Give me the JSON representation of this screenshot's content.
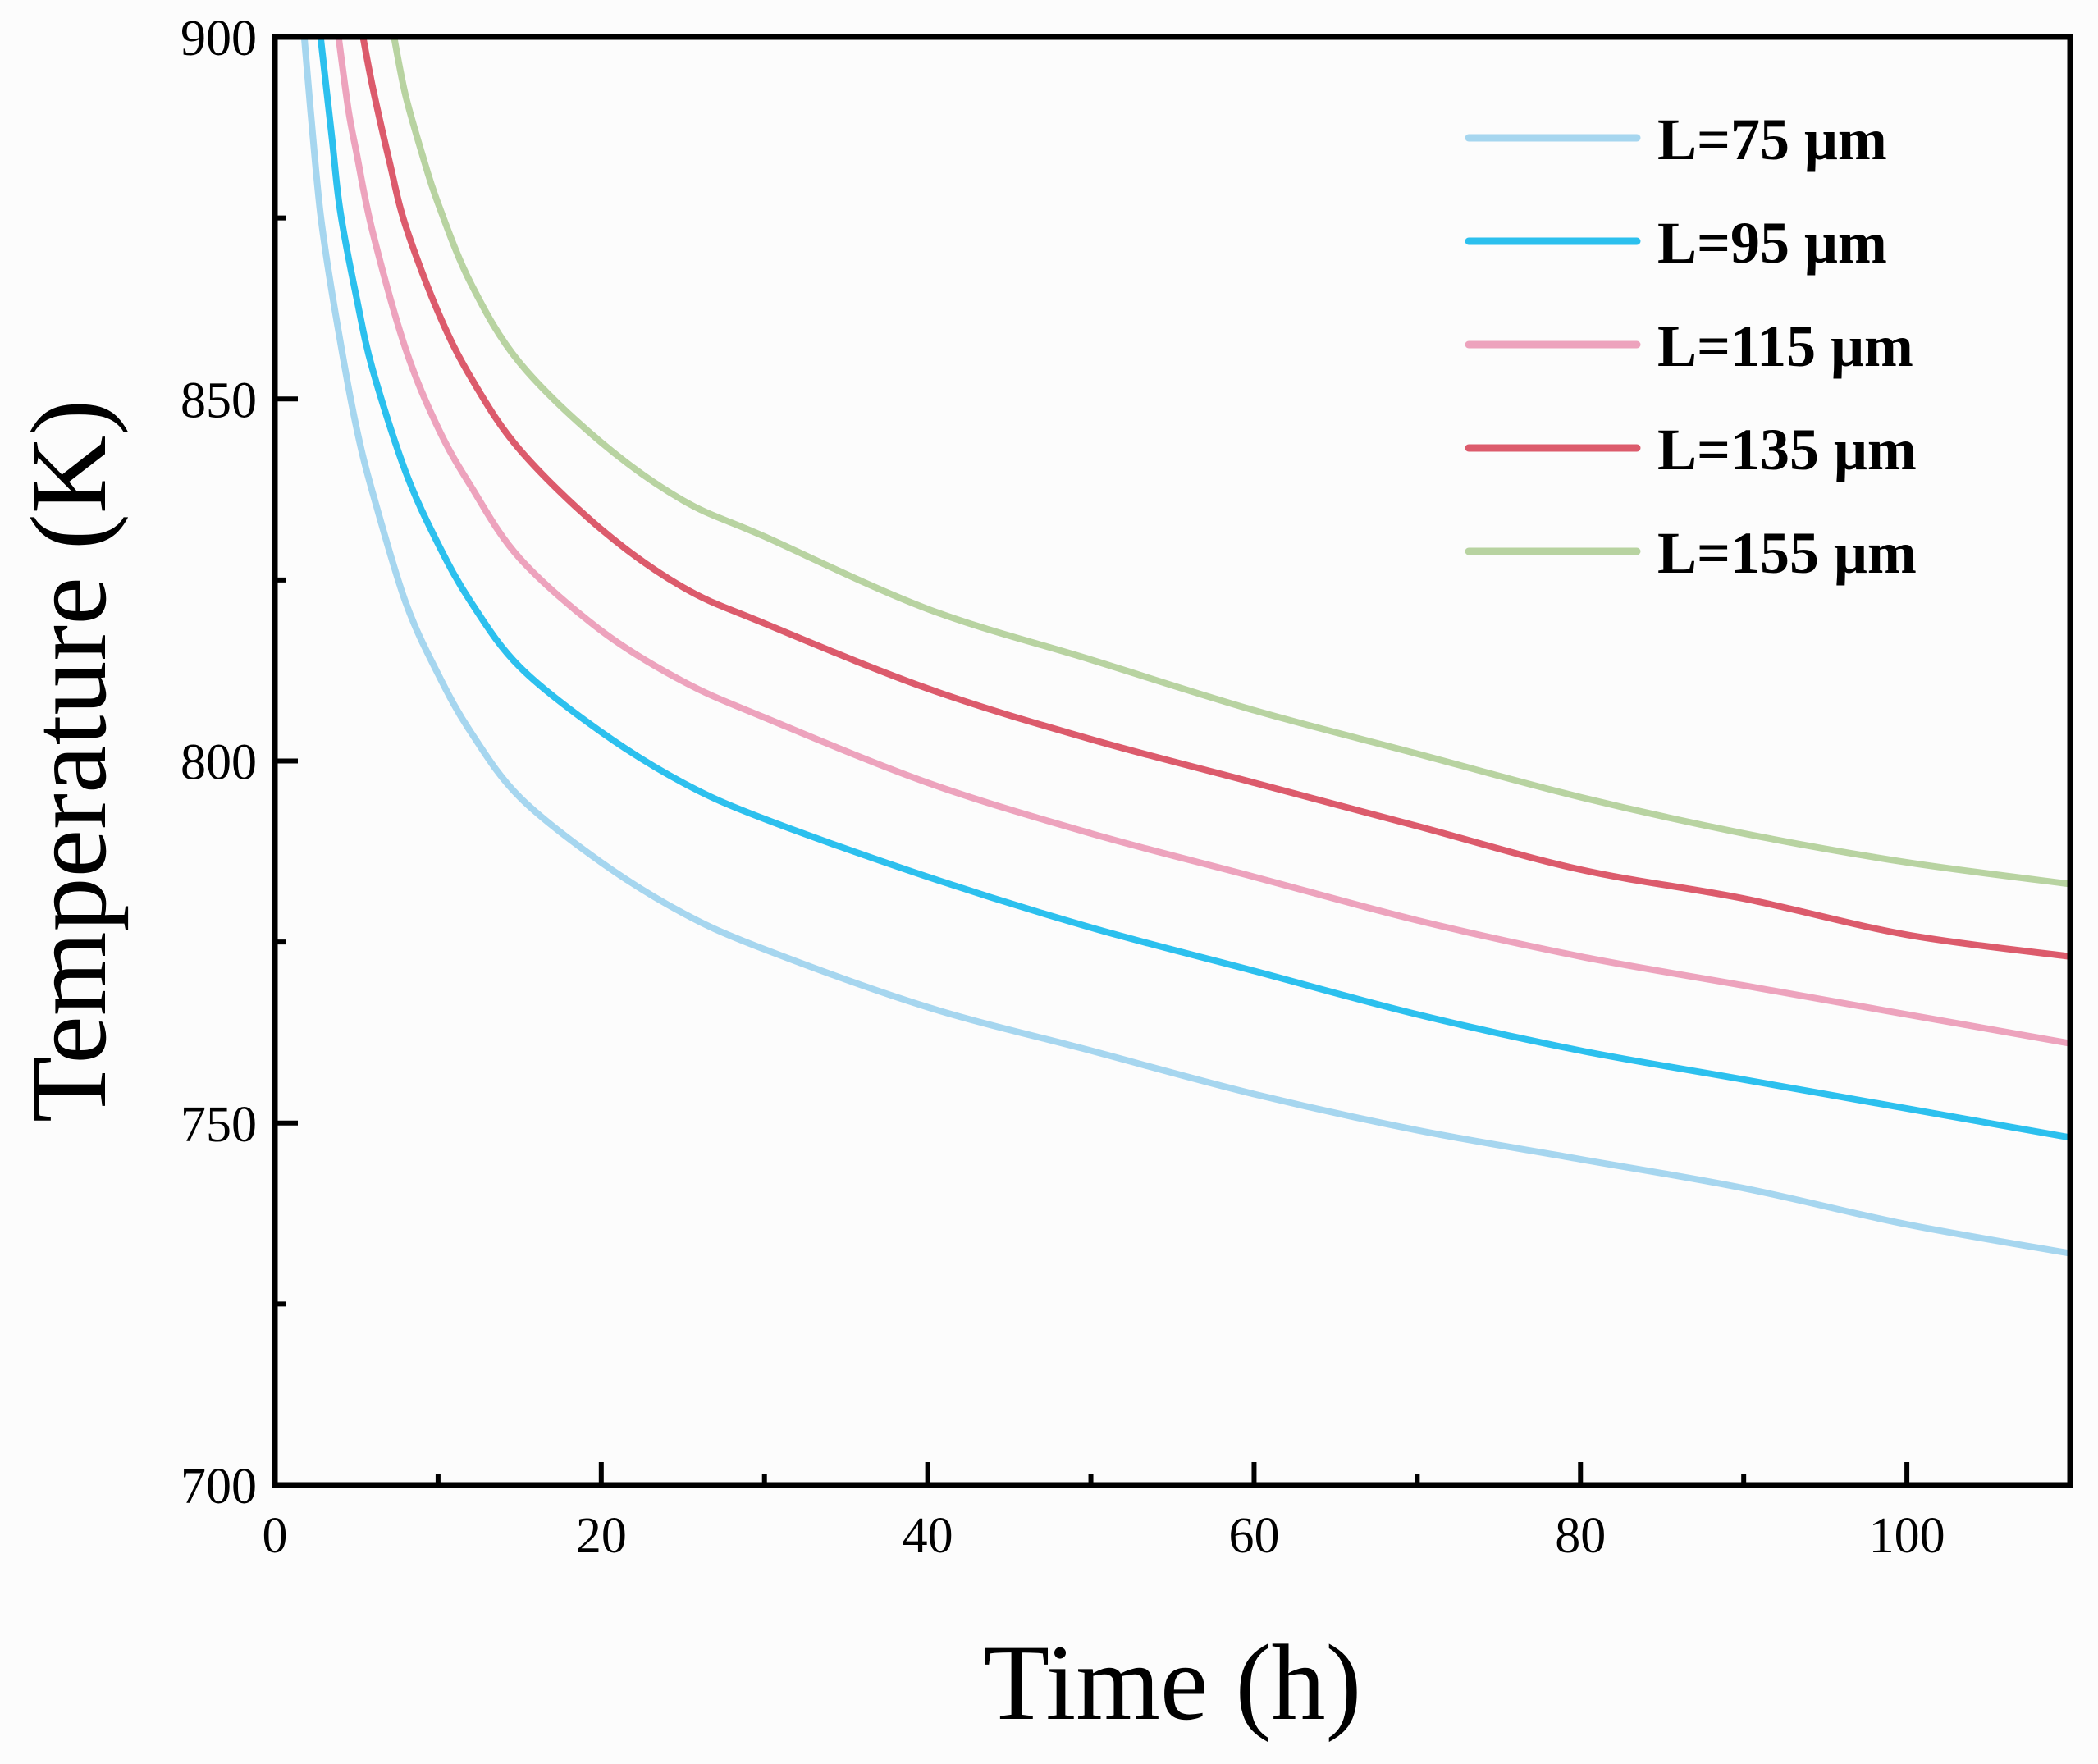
{
  "chart_data": {
    "type": "line",
    "title": "",
    "xlabel": "Time (h)",
    "ylabel": "Temperature (K)",
    "xlim": [
      0,
      110
    ],
    "ylim": [
      700,
      900
    ],
    "grid": false,
    "legend_position": "top-right",
    "x_ticks": [
      0,
      20,
      40,
      60,
      80,
      100
    ],
    "y_ticks": [
      700,
      750,
      800,
      850,
      900
    ],
    "x_tick_labels": [
      "0",
      "20",
      "40",
      "60",
      "80",
      "100"
    ],
    "y_tick_labels": [
      "700",
      "750",
      "800",
      "850",
      "900"
    ],
    "x_minor_ticks": [
      10,
      30,
      50,
      70,
      90
    ],
    "y_minor_ticks": [
      725,
      775,
      825,
      875
    ],
    "x": [
      2,
      3,
      4,
      5,
      6,
      7,
      8,
      10,
      12,
      14,
      16,
      18,
      20,
      25,
      30,
      35,
      40,
      45,
      50,
      55,
      60,
      65,
      70,
      75,
      80,
      85,
      90,
      95,
      100,
      105,
      110
    ],
    "series": [
      {
        "name": "L=75 μm",
        "color": "#a6d6ef",
        "x": [
          1.8,
          2.5,
          3,
          4,
          5,
          6,
          8,
          10,
          12,
          15,
          20,
          25,
          30,
          40,
          50,
          60,
          70,
          80,
          90,
          100,
          110
        ],
        "values": [
          900,
          882,
          872,
          858,
          846,
          837,
          822,
          812,
          804,
          795,
          786,
          779,
          774,
          766,
          760,
          754,
          749,
          745,
          741,
          736,
          732
        ]
      },
      {
        "name": "L=95 μm",
        "color": "#2cc0ee",
        "x": [
          2.8,
          3.5,
          4,
          5,
          6,
          8,
          10,
          12,
          15,
          20,
          25,
          30,
          40,
          50,
          60,
          70,
          80,
          90,
          100,
          110
        ],
        "values": [
          900,
          886,
          876,
          864,
          854,
          840,
          830,
          822,
          813,
          804,
          797,
          792,
          784,
          777,
          771,
          765,
          760,
          756,
          752,
          748
        ]
      },
      {
        "name": "L=115 μm",
        "color": "#eda3bd",
        "x": [
          3.9,
          4.5,
          5,
          6,
          8,
          10,
          12,
          15,
          20,
          25,
          30,
          40,
          50,
          60,
          70,
          80,
          90,
          100,
          110
        ],
        "values": [
          900,
          890,
          884,
          873,
          857,
          846,
          838,
          828,
          818,
          811,
          806,
          797,
          790,
          784,
          778,
          773,
          769,
          765,
          761
        ]
      },
      {
        "name": "L=135 μm",
        "color": "#dc5b6c",
        "x": [
          5.4,
          6,
          7,
          8,
          10,
          12,
          15,
          20,
          25,
          30,
          40,
          50,
          60,
          70,
          80,
          90,
          100,
          110
        ],
        "values": [
          900,
          893,
          883,
          874,
          862,
          853,
          843,
          832,
          824,
          819,
          810,
          803,
          797,
          791,
          785,
          781,
          776,
          773
        ]
      },
      {
        "name": "L=155 μm",
        "color": "#b8d3a1",
        "x": [
          7.3,
          8,
          9,
          10,
          12,
          15,
          20,
          25,
          30,
          40,
          50,
          60,
          70,
          80,
          90,
          100,
          110
        ],
        "values": [
          900,
          892,
          884,
          877,
          866,
          855,
          844,
          836,
          831,
          821,
          814,
          807,
          801,
          795,
          790,
          786,
          783
        ]
      }
    ]
  }
}
